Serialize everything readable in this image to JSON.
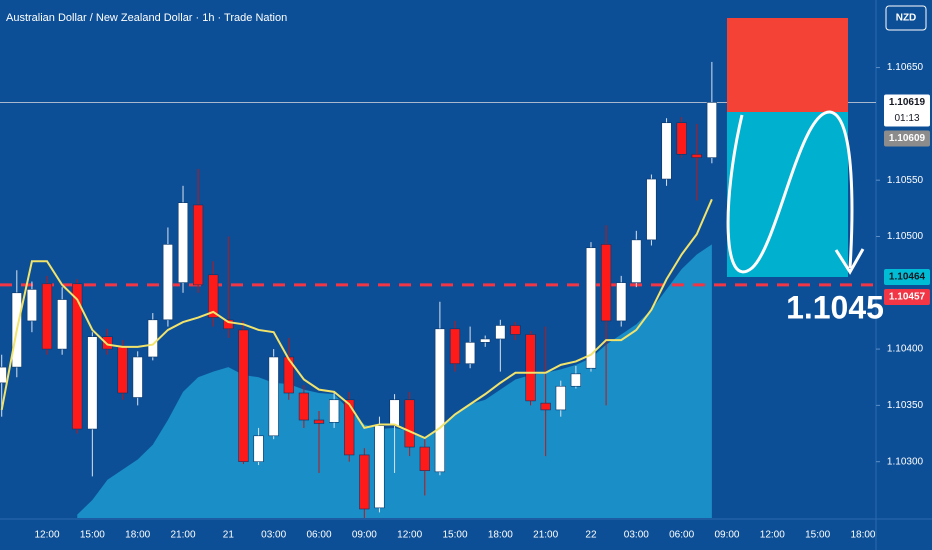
{
  "chart_data": {
    "type": "candlestick",
    "title": "Australian Dollar / New Zealand Dollar · 1h · Trade Nation",
    "currency": "NZD",
    "categories": [
      null,
      null,
      null,
      "12:00",
      null,
      null,
      "15:00",
      null,
      null,
      "18:00",
      null,
      null,
      "21:00",
      null,
      null,
      "21",
      null,
      null,
      "03:00",
      null,
      null,
      "06:00",
      null,
      null,
      "09:00",
      null,
      null,
      "12:00",
      null,
      null,
      "15:00",
      null,
      null,
      "18:00",
      null,
      null,
      "21:00",
      null,
      null,
      "22",
      null,
      null,
      "03:00",
      null,
      null,
      "06:00",
      null,
      null,
      "09:00",
      null,
      null,
      "12:00",
      null,
      null,
      "15:00",
      null,
      null,
      "18:00"
    ],
    "open": [
      1.1037,
      1.10384,
      1.10425,
      1.10458,
      1.104,
      1.10458,
      1.10329,
      1.10411,
      1.10402,
      1.10357,
      1.10393,
      1.10426,
      1.10459,
      1.10528,
      1.10466,
      1.10426,
      1.10417,
      1.103,
      1.10323,
      1.10393,
      1.10361,
      1.10337,
      1.10335,
      1.10355,
      1.10306,
      1.10259,
      1.10332,
      1.10355,
      1.10313,
      1.10291,
      1.10418,
      1.10387,
      1.10406,
      1.10409,
      1.10421,
      1.10413,
      1.10352,
      1.10346,
      1.10367,
      1.10383,
      1.10493,
      1.10425,
      1.10459,
      1.10497,
      1.10551,
      1.10601,
      1.10573,
      1.1057,
      null,
      null,
      null,
      null,
      null,
      null,
      null,
      null,
      null,
      null
    ],
    "high": [
      1.10395,
      1.1047,
      1.1046,
      1.10465,
      1.10455,
      1.10462,
      1.10415,
      1.10418,
      1.10408,
      1.10398,
      1.10432,
      1.10508,
      1.10545,
      1.1056,
      1.10478,
      1.105,
      1.10425,
      1.1033,
      1.104,
      1.1041,
      1.10368,
      1.10345,
      1.10362,
      1.10362,
      1.10312,
      1.1034,
      1.1036,
      1.10362,
      1.1032,
      1.10442,
      1.10425,
      1.1042,
      1.10412,
      1.10426,
      1.10424,
      1.10416,
      1.1042,
      1.10372,
      1.10385,
      1.10495,
      1.1051,
      1.10465,
      1.10505,
      1.10555,
      1.10605,
      1.10606,
      1.106,
      1.10655,
      null,
      null,
      null,
      null,
      null,
      null,
      null,
      null,
      null,
      null
    ],
    "low": [
      1.1034,
      1.10375,
      1.10415,
      1.10395,
      1.10395,
      1.10325,
      1.10287,
      1.10395,
      1.10355,
      1.1035,
      1.1039,
      1.1042,
      1.1045,
      1.1045,
      1.1042,
      1.1041,
      1.10298,
      1.10297,
      1.1032,
      1.10355,
      1.1033,
      1.1029,
      1.1033,
      1.103,
      1.1025,
      1.10255,
      1.1029,
      1.10305,
      1.1027,
      1.10288,
      1.1038,
      1.10383,
      1.10402,
      1.1038,
      1.10408,
      1.1035,
      1.10305,
      1.1034,
      1.10365,
      1.1038,
      1.1035,
      1.1042,
      1.10455,
      1.10492,
      1.10545,
      1.1057,
      1.10532,
      1.10565,
      null,
      null,
      null,
      null,
      null,
      null,
      null,
      null,
      null,
      null
    ],
    "close": [
      1.10384,
      1.1045,
      1.10453,
      1.104,
      1.10444,
      1.10329,
      1.10411,
      1.104,
      1.10361,
      1.10393,
      1.10426,
      1.10493,
      1.1053,
      1.10457,
      1.10428,
      1.10418,
      1.103,
      1.10323,
      1.10393,
      1.10361,
      1.10337,
      1.10334,
      1.10355,
      1.10306,
      1.10258,
      1.10332,
      1.10355,
      1.10313,
      1.10292,
      1.10418,
      1.10387,
      1.10406,
      1.10409,
      1.10421,
      1.10413,
      1.10354,
      1.10346,
      1.10367,
      1.10378,
      1.1049,
      1.10425,
      1.10459,
      1.10497,
      1.10551,
      1.10601,
      1.10573,
      1.1057,
      1.10619,
      null,
      null,
      null,
      null,
      null,
      null,
      null,
      null,
      null,
      null
    ],
    "up_color": "#ffffff",
    "down_color": "#ff1a1a",
    "ma": {
      "color": "#f2e36b",
      "values": [
        1.10346,
        1.10417,
        1.10478,
        1.10478,
        1.10457,
        1.10444,
        1.10417,
        1.10404,
        1.10402,
        1.10402,
        1.10404,
        1.10417,
        1.10424,
        1.10428,
        1.10433,
        1.10424,
        1.10422,
        1.10417,
        1.10415,
        1.10391,
        1.10373,
        1.10364,
        1.10362,
        1.10351,
        1.1033,
        1.10333,
        1.10333,
        1.10327,
        1.10321,
        1.1033,
        1.10342,
        1.10351,
        1.1036,
        1.1037,
        1.10379,
        1.10379,
        1.10379,
        1.10386,
        1.10389,
        1.10395,
        1.10408,
        1.10408,
        1.10417,
        1.10435,
        1.10462,
        1.10484,
        1.10502,
        1.10533,
        null,
        null,
        null,
        null,
        null,
        null,
        null,
        null,
        null,
        null
      ]
    },
    "area": {
      "color": "#1fa3d6",
      "values": [
        null,
        null,
        null,
        null,
        null,
        1.10253,
        1.10266,
        1.10284,
        1.10293,
        1.10302,
        1.10315,
        1.10337,
        1.10362,
        1.10375,
        1.1038,
        1.10384,
        1.10377,
        1.10375,
        1.1037,
        1.10369,
        1.10364,
        1.10361,
        1.1036,
        1.10346,
        1.10333,
        1.10329,
        1.1033,
        1.10327,
        1.1032,
        1.1033,
        1.10342,
        1.10351,
        1.10355,
        1.10364,
        1.10373,
        1.10377,
        1.10379,
        1.10382,
        1.10386,
        1.10392,
        1.10404,
        1.10413,
        1.10422,
        1.10435,
        1.10453,
        1.10471,
        1.10484,
        1.10493,
        null,
        null,
        null,
        null,
        null,
        null,
        null,
        null,
        null,
        null
      ]
    },
    "ylim": [
      1.1025,
      1.1071
    ],
    "yticks": [
      {
        "value": 1.1065,
        "label": "1.10650"
      },
      {
        "value": 1.1055,
        "label": "1.10550"
      },
      {
        "value": 1.105,
        "label": "1.10500"
      },
      {
        "value": 1.104,
        "label": "1.10400"
      },
      {
        "value": 1.1035,
        "label": "1.10350"
      },
      {
        "value": 1.103,
        "label": "1.10300"
      }
    ],
    "grid": false,
    "last_price": 1.10619,
    "countdown": "01:13",
    "level_line": 1.10457,
    "price_tags": [
      {
        "value": 1.10619,
        "color": "#ffffff"
      },
      {
        "value": 1.10609,
        "color": "#8c8c8c"
      },
      {
        "value": 1.10464,
        "color": "#00bcd4"
      },
      {
        "value": 1.10457,
        "color": "#f23645"
      }
    ],
    "annotation": 1.1045
  }
}
